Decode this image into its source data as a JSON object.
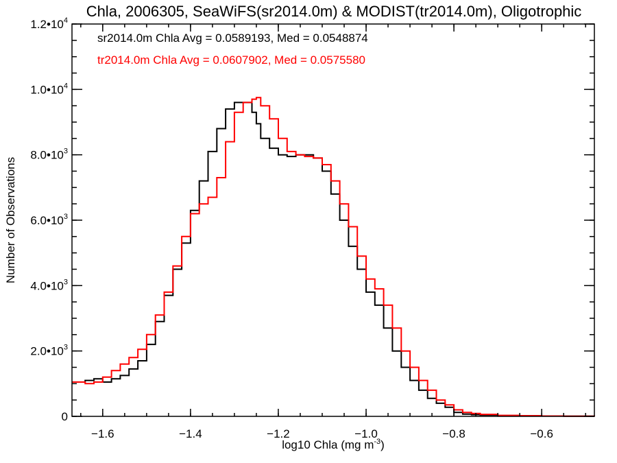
{
  "chart_data": {
    "type": "line",
    "step": true,
    "title": "Chla, 2006305, SeaWiFS(sr2014.0m) & MODIST(tr2014.0m), Oligotrophic",
    "xlabel": "log10 Chla (mg m",
    "xlabel_sup": "-3",
    "xlabel_suffix": ")",
    "ylabel": "Number of Observations",
    "xlim": [
      -1.67,
      -0.48
    ],
    "ylim": [
      0,
      12000
    ],
    "xticks": [
      {
        "value": -1.6,
        "label": "−1.6"
      },
      {
        "value": -1.4,
        "label": "−1.4"
      },
      {
        "value": -1.2,
        "label": "−1.2"
      },
      {
        "value": -1.0,
        "label": "−1.0"
      },
      {
        "value": -0.8,
        "label": "−0.8"
      },
      {
        "value": -0.6,
        "label": "−0.6"
      }
    ],
    "yticks": [
      {
        "value": 0,
        "mant": "0",
        "exp": ""
      },
      {
        "value": 2000,
        "mant": "2.0•10",
        "exp": "3"
      },
      {
        "value": 4000,
        "mant": "4.0•10",
        "exp": "3"
      },
      {
        "value": 6000,
        "mant": "6.0•10",
        "exp": "3"
      },
      {
        "value": 8000,
        "mant": "8.0•10",
        "exp": "3"
      },
      {
        "value": 10000,
        "mant": "1.0•10",
        "exp": "4"
      },
      {
        "value": 12000,
        "mant": "1.2•10",
        "exp": "4"
      }
    ],
    "annotations": [
      {
        "text": "sr2014.0m Chla Avg = 0.0589193, Med = 0.0548874",
        "color": "#000000"
      },
      {
        "text": "tr2014.0m Chla Avg = 0.0607902, Med = 0.0575580",
        "color": "#ff0000"
      }
    ],
    "series": [
      {
        "color": "#000000",
        "x": [
          -1.67,
          -1.64,
          -1.62,
          -1.6,
          -1.58,
          -1.56,
          -1.54,
          -1.52,
          -1.5,
          -1.48,
          -1.46,
          -1.44,
          -1.42,
          -1.4,
          -1.38,
          -1.36,
          -1.34,
          -1.32,
          -1.3,
          -1.28,
          -1.26,
          -1.25,
          -1.24,
          -1.22,
          -1.2,
          -1.18,
          -1.16,
          -1.14,
          -1.12,
          -1.1,
          -1.08,
          -1.06,
          -1.04,
          -1.02,
          -1.0,
          -0.98,
          -0.96,
          -0.94,
          -0.92,
          -0.9,
          -0.88,
          -0.86,
          -0.84,
          -0.82,
          -0.8,
          -0.78,
          -0.76,
          -0.74,
          -0.7,
          -0.65,
          -0.6,
          -0.55,
          -0.48
        ],
        "y": [
          1050,
          1100,
          1150,
          1050,
          1150,
          1250,
          1450,
          1700,
          2200,
          2900,
          3700,
          4500,
          5300,
          6300,
          7200,
          8100,
          8800,
          9400,
          9600,
          9600,
          9300,
          8950,
          8500,
          8200,
          8000,
          7950,
          8000,
          8000,
          7900,
          7500,
          6800,
          6000,
          5200,
          4500,
          3800,
          3400,
          2700,
          2000,
          1500,
          1100,
          800,
          550,
          400,
          280,
          120,
          70,
          50,
          40,
          25,
          15,
          10,
          5,
          0
        ]
      },
      {
        "color": "#ff0000",
        "x": [
          -1.67,
          -1.64,
          -1.62,
          -1.6,
          -1.58,
          -1.56,
          -1.54,
          -1.52,
          -1.5,
          -1.48,
          -1.46,
          -1.44,
          -1.42,
          -1.4,
          -1.38,
          -1.36,
          -1.34,
          -1.32,
          -1.3,
          -1.28,
          -1.26,
          -1.25,
          -1.24,
          -1.22,
          -1.2,
          -1.18,
          -1.16,
          -1.14,
          -1.12,
          -1.1,
          -1.08,
          -1.06,
          -1.04,
          -1.02,
          -1.0,
          -0.98,
          -0.96,
          -0.94,
          -0.92,
          -0.9,
          -0.88,
          -0.86,
          -0.84,
          -0.82,
          -0.8,
          -0.78,
          -0.76,
          -0.74,
          -0.7,
          -0.65,
          -0.6,
          -0.55,
          -0.48
        ],
        "y": [
          1050,
          1000,
          1050,
          1200,
          1400,
          1600,
          1800,
          2050,
          2500,
          3100,
          3800,
          4600,
          5500,
          6200,
          6500,
          6700,
          7300,
          8400,
          9300,
          9600,
          9700,
          9750,
          9500,
          9100,
          8500,
          8100,
          8000,
          7950,
          7900,
          7700,
          7200,
          6500,
          5800,
          4900,
          4200,
          3900,
          3400,
          2700,
          2000,
          1500,
          1100,
          800,
          500,
          350,
          200,
          120,
          90,
          60,
          30,
          20,
          10,
          5,
          0
        ]
      }
    ]
  }
}
